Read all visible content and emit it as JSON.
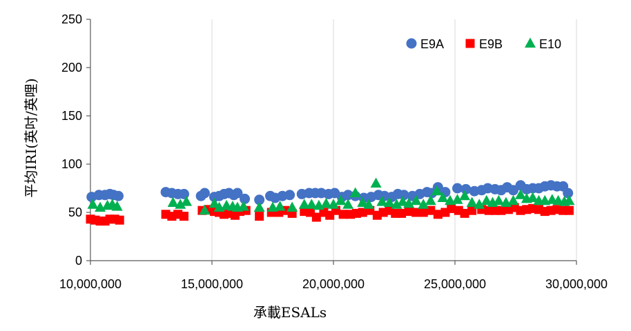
{
  "chart_data": {
    "type": "scatter",
    "xlabel": "承載ESALs",
    "ylabel": "平均IRI(英吋/英哩)",
    "xlim": [
      10000000,
      30000000
    ],
    "ylim": [
      0,
      250
    ],
    "xticks": [
      10000000,
      15000000,
      20000000,
      25000000,
      30000000
    ],
    "xtick_labels": [
      "10,000,000",
      "15,000,000",
      "20,000,000",
      "25,000,000",
      "30,000,000"
    ],
    "yticks": [
      0,
      50,
      100,
      150,
      200,
      250
    ],
    "ytick_labels": [
      "0",
      "50",
      "100",
      "150",
      "200",
      "250"
    ],
    "grid": {
      "vertical": true,
      "horizontal": false
    },
    "legend": "top-right",
    "series": [
      {
        "name": "E9A",
        "marker": "circle",
        "color": "#4472C4",
        "points": [
          [
            10050000,
            66
          ],
          [
            10350000,
            68
          ],
          [
            10600000,
            68
          ],
          [
            10800000,
            69
          ],
          [
            10950000,
            68
          ],
          [
            11150000,
            67
          ],
          [
            13100000,
            71
          ],
          [
            13350000,
            70
          ],
          [
            13600000,
            69
          ],
          [
            13850000,
            69
          ],
          [
            14550000,
            67
          ],
          [
            14700000,
            70
          ],
          [
            15100000,
            66
          ],
          [
            15300000,
            67
          ],
          [
            15500000,
            69
          ],
          [
            15700000,
            70
          ],
          [
            15900000,
            68
          ],
          [
            16050000,
            70
          ],
          [
            16350000,
            64
          ],
          [
            16950000,
            63
          ],
          [
            17400000,
            67
          ],
          [
            17600000,
            65
          ],
          [
            17900000,
            67
          ],
          [
            18200000,
            68
          ],
          [
            18700000,
            69
          ],
          [
            19000000,
            70
          ],
          [
            19250000,
            70
          ],
          [
            19500000,
            70
          ],
          [
            19800000,
            69
          ],
          [
            20050000,
            70
          ],
          [
            20350000,
            66
          ],
          [
            20600000,
            68
          ],
          [
            20900000,
            67
          ],
          [
            21250000,
            65
          ],
          [
            21550000,
            66
          ],
          [
            21850000,
            68
          ],
          [
            22100000,
            67
          ],
          [
            22400000,
            66
          ],
          [
            22650000,
            69
          ],
          [
            22900000,
            68
          ],
          [
            23250000,
            67
          ],
          [
            23550000,
            69
          ],
          [
            23850000,
            71
          ],
          [
            24050000,
            70
          ],
          [
            24300000,
            76
          ],
          [
            24600000,
            71
          ],
          [
            25100000,
            75
          ],
          [
            25450000,
            74
          ],
          [
            25800000,
            72
          ],
          [
            26100000,
            73
          ],
          [
            26350000,
            75
          ],
          [
            26650000,
            74
          ],
          [
            26900000,
            73
          ],
          [
            27150000,
            76
          ],
          [
            27400000,
            73
          ],
          [
            27700000,
            78
          ],
          [
            27950000,
            74
          ],
          [
            28200000,
            75
          ],
          [
            28450000,
            75
          ],
          [
            28700000,
            77
          ],
          [
            28950000,
            78
          ],
          [
            29200000,
            77
          ],
          [
            29450000,
            77
          ],
          [
            29650000,
            70
          ]
        ]
      },
      {
        "name": "E9B",
        "marker": "square",
        "color": "#FF0000",
        "points": [
          [
            10000000,
            43
          ],
          [
            10200000,
            42
          ],
          [
            10400000,
            41
          ],
          [
            10600000,
            41
          ],
          [
            10800000,
            43
          ],
          [
            11000000,
            43
          ],
          [
            11200000,
            42
          ],
          [
            13100000,
            48
          ],
          [
            13350000,
            46
          ],
          [
            13600000,
            48
          ],
          [
            13850000,
            46
          ],
          [
            14600000,
            52
          ],
          [
            14850000,
            53
          ],
          [
            15100000,
            51
          ],
          [
            15300000,
            50
          ],
          [
            15500000,
            48
          ],
          [
            15750000,
            49
          ],
          [
            15950000,
            47
          ],
          [
            16150000,
            51
          ],
          [
            16400000,
            52
          ],
          [
            16950000,
            46
          ],
          [
            17450000,
            50
          ],
          [
            17750000,
            50
          ],
          [
            18000000,
            52
          ],
          [
            18300000,
            49
          ],
          [
            18800000,
            51
          ],
          [
            19050000,
            50
          ],
          [
            19300000,
            45
          ],
          [
            19600000,
            50
          ],
          [
            19850000,
            47
          ],
          [
            20100000,
            52
          ],
          [
            20400000,
            48
          ],
          [
            20700000,
            48
          ],
          [
            20950000,
            49
          ],
          [
            21200000,
            50
          ],
          [
            21500000,
            52
          ],
          [
            21800000,
            47
          ],
          [
            22050000,
            50
          ],
          [
            22300000,
            52
          ],
          [
            22550000,
            49
          ],
          [
            22800000,
            49
          ],
          [
            23100000,
            51
          ],
          [
            23400000,
            50
          ],
          [
            23700000,
            50
          ],
          [
            24000000,
            52
          ],
          [
            24300000,
            48
          ],
          [
            24600000,
            50
          ],
          [
            24850000,
            54
          ],
          [
            25150000,
            52
          ],
          [
            25400000,
            49
          ],
          [
            25700000,
            52
          ],
          [
            26100000,
            53
          ],
          [
            26400000,
            52
          ],
          [
            26650000,
            52
          ],
          [
            26900000,
            52
          ],
          [
            27200000,
            53
          ],
          [
            27450000,
            55
          ],
          [
            27700000,
            52
          ],
          [
            27950000,
            53
          ],
          [
            28200000,
            54
          ],
          [
            28450000,
            53
          ],
          [
            28700000,
            51
          ],
          [
            28950000,
            52
          ],
          [
            29200000,
            53
          ],
          [
            29450000,
            52
          ],
          [
            29700000,
            52
          ]
        ]
      },
      {
        "name": "E10",
        "marker": "triangle",
        "color": "#00B050",
        "points": [
          [
            10100000,
            58
          ],
          [
            10400000,
            55
          ],
          [
            10700000,
            57
          ],
          [
            10900000,
            58
          ],
          [
            11100000,
            56
          ],
          [
            13400000,
            60
          ],
          [
            13700000,
            58
          ],
          [
            13950000,
            61
          ],
          [
            14700000,
            52
          ],
          [
            15100000,
            59
          ],
          [
            15300000,
            55
          ],
          [
            15600000,
            57
          ],
          [
            15850000,
            56
          ],
          [
            16050000,
            55
          ],
          [
            16300000,
            56
          ],
          [
            16950000,
            55
          ],
          [
            17500000,
            55
          ],
          [
            17800000,
            56
          ],
          [
            18300000,
            55
          ],
          [
            18800000,
            58
          ],
          [
            19100000,
            58
          ],
          [
            19400000,
            57
          ],
          [
            19700000,
            59
          ],
          [
            20000000,
            58
          ],
          [
            20300000,
            62
          ],
          [
            20600000,
            58
          ],
          [
            20900000,
            70
          ],
          [
            21200000,
            60
          ],
          [
            21450000,
            58
          ],
          [
            21750000,
            80
          ],
          [
            22000000,
            61
          ],
          [
            22300000,
            60
          ],
          [
            22600000,
            58
          ],
          [
            22850000,
            61
          ],
          [
            23100000,
            59
          ],
          [
            23400000,
            62
          ],
          [
            23700000,
            58
          ],
          [
            24000000,
            62
          ],
          [
            24250000,
            72
          ],
          [
            24500000,
            65
          ],
          [
            24800000,
            62
          ],
          [
            25100000,
            63
          ],
          [
            25400000,
            67
          ],
          [
            25700000,
            60
          ],
          [
            26000000,
            58
          ],
          [
            26300000,
            62
          ],
          [
            26550000,
            60
          ],
          [
            26800000,
            62
          ],
          [
            27100000,
            60
          ],
          [
            27400000,
            62
          ],
          [
            27700000,
            68
          ],
          [
            27950000,
            64
          ],
          [
            28200000,
            65
          ],
          [
            28450000,
            62
          ],
          [
            28700000,
            62
          ],
          [
            29000000,
            63
          ],
          [
            29250000,
            62
          ],
          [
            29500000,
            61
          ],
          [
            29700000,
            62
          ]
        ]
      }
    ]
  }
}
